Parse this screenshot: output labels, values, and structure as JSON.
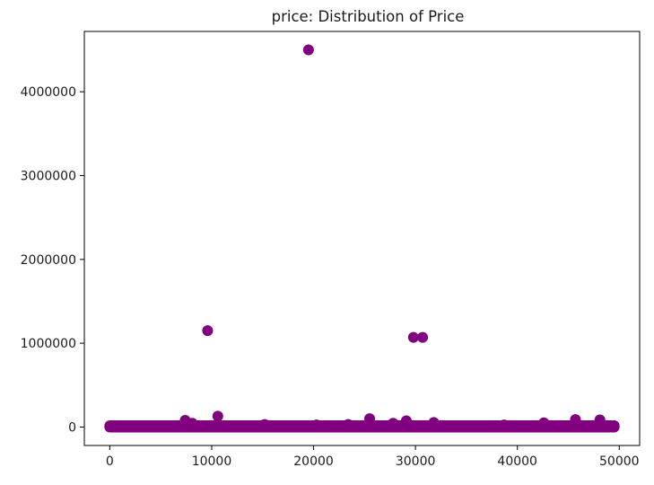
{
  "chart_data": {
    "type": "scatter",
    "title": "price: Distribution of Price",
    "xlabel": "",
    "ylabel": "",
    "xlim": [
      -2500,
      52000
    ],
    "ylim": [
      -220000,
      4720000
    ],
    "x_ticks": [
      0,
      10000,
      20000,
      30000,
      40000,
      50000
    ],
    "x_tick_labels": [
      "0",
      "10000",
      "20000",
      "30000",
      "40000",
      "50000"
    ],
    "y_ticks": [
      0,
      1000000,
      2000000,
      3000000,
      4000000
    ],
    "y_tick_labels": [
      "0",
      "1000000",
      "2000000",
      "3000000",
      "4000000"
    ],
    "grid": false,
    "legend": "none",
    "marker_color": "#800080",
    "series": [
      {
        "x": [
          19500,
          9600,
          29800,
          30700,
          10600,
          25500,
          7400,
          45700,
          48100,
          29100,
          31800,
          27800,
          42600,
          8100,
          15200,
          20300,
          23400,
          38700,
          0,
          1000,
          2000,
          3000,
          4000,
          5000,
          6000,
          7000,
          8000,
          9000,
          10000,
          11000,
          12000,
          13000,
          14000,
          15000,
          16000,
          17000,
          18000,
          19000,
          20000,
          21000,
          22000,
          23000,
          24000,
          25000,
          26000,
          27000,
          28000,
          29000,
          30000,
          31000,
          32000,
          33000,
          34000,
          35000,
          36000,
          37000,
          38000,
          39000,
          40000,
          41000,
          42000,
          43000,
          44000,
          45000,
          46000,
          47000,
          48000,
          49000,
          49500
        ],
        "y": [
          4500000,
          1150000,
          1070000,
          1070000,
          130000,
          100000,
          80000,
          90000,
          85000,
          75000,
          55000,
          45000,
          50000,
          45000,
          30000,
          25000,
          30000,
          25000,
          5000,
          8000,
          6000,
          9000,
          7000,
          10000,
          6000,
          12000,
          9000,
          8000,
          15000,
          11000,
          7000,
          10000,
          8000,
          12000,
          9000,
          6000,
          10000,
          14000,
          9000,
          7000,
          11000,
          8000,
          10000,
          12000,
          9000,
          7000,
          13000,
          10000,
          8000,
          9000,
          11000,
          7000,
          10000,
          8000,
          12000,
          9000,
          7000,
          10000,
          11000,
          8000,
          9000,
          12000,
          7000,
          10000,
          8000,
          11000,
          9000,
          6000,
          5000
        ]
      }
    ]
  }
}
